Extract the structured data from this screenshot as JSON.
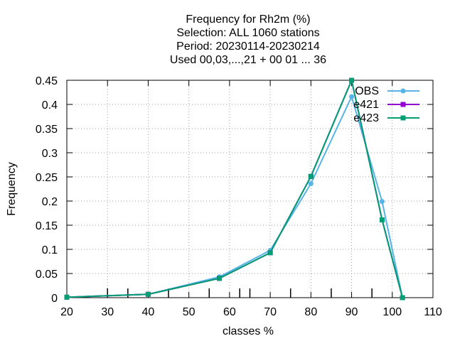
{
  "chart_data": {
    "type": "line",
    "title_lines": [
      "Frequency  for Rh2m (%)",
      "Selection: ALL   1060 stations",
      "Period: 20230114-20230214",
      "Used  00,03,...,21  + 00 01 ... 36"
    ],
    "xlabel": "classes %",
    "ylabel": "Frequency",
    "xlim": [
      20,
      110
    ],
    "ylim": [
      0,
      0.45
    ],
    "xticks": [
      20,
      30,
      40,
      50,
      60,
      70,
      80,
      90,
      100,
      110
    ],
    "yticks": [
      0,
      0.05,
      0.1,
      0.15,
      0.2,
      0.25,
      0.3,
      0.35,
      0.4,
      0.45
    ],
    "xtick_labels": [
      "20",
      "30",
      "40",
      "50",
      "60",
      "70",
      "80",
      "90",
      "100",
      "110"
    ],
    "ytick_labels": [
      "0",
      "0.05",
      "0.1",
      "0.15",
      "0.2",
      "0.25",
      "0.3",
      "0.35",
      "0.4",
      "0.45"
    ],
    "grid": true,
    "legend_position": "top-right",
    "x": [
      20,
      40,
      57.5,
      70,
      80,
      90,
      97.5,
      102.5
    ],
    "series": [
      {
        "name": "OBS",
        "color": "#56b4e9",
        "marker": "circle",
        "values": [
          0.001,
          0.007,
          0.043,
          0.098,
          0.236,
          0.416,
          0.199,
          0.0
        ]
      },
      {
        "name": "e421",
        "color": "#9400d3",
        "marker": "square",
        "values": [
          0.001,
          0.007,
          0.04,
          0.093,
          0.251,
          0.45,
          0.161,
          0.0
        ]
      },
      {
        "name": "e423",
        "color": "#009e73",
        "marker": "square",
        "values": [
          0.001,
          0.007,
          0.04,
          0.093,
          0.251,
          0.45,
          0.161,
          0.0
        ]
      }
    ],
    "minor_xticks": [
      30,
      35,
      45,
      55,
      62.5,
      65,
      75,
      85,
      95
    ]
  }
}
